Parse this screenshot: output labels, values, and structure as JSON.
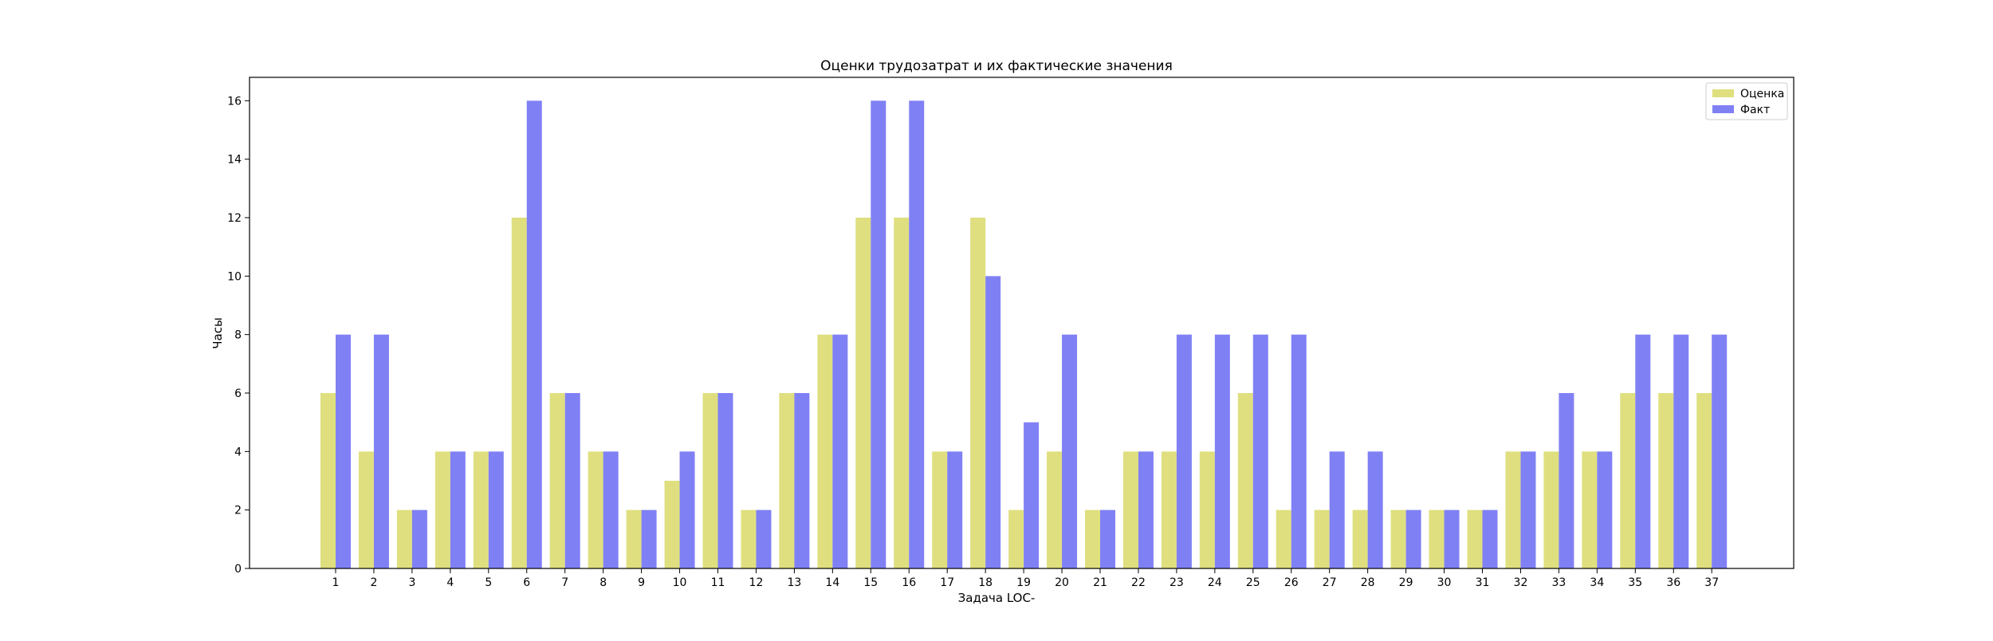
{
  "chart_data": {
    "type": "bar",
    "title": "Оценки трудозатрат и их фактические значения",
    "xlabel": "Задача LOC-",
    "ylabel": "Часы",
    "categories": [
      "1",
      "2",
      "3",
      "4",
      "5",
      "6",
      "7",
      "8",
      "9",
      "10",
      "11",
      "12",
      "13",
      "14",
      "15",
      "16",
      "17",
      "18",
      "19",
      "20",
      "21",
      "22",
      "23",
      "24",
      "25",
      "26",
      "27",
      "28",
      "29",
      "30",
      "31",
      "32",
      "33",
      "34",
      "35",
      "36",
      "37"
    ],
    "series": [
      {
        "name": "Оценка",
        "color": "#dfdf7f",
        "values": [
          6,
          4,
          2,
          4,
          4,
          12,
          6,
          4,
          2,
          3,
          6,
          2,
          6,
          8,
          12,
          12,
          4,
          12,
          2,
          4,
          2,
          4,
          4,
          4,
          6,
          2,
          2,
          2,
          2,
          2,
          2,
          4,
          4,
          4,
          6,
          6,
          6
        ]
      },
      {
        "name": "Факт",
        "color": "#8080f5",
        "values": [
          8,
          8,
          2,
          4,
          4,
          16,
          6,
          4,
          2,
          4,
          6,
          2,
          6,
          8,
          16,
          16,
          4,
          10,
          5,
          8,
          2,
          4,
          8,
          8,
          8,
          8,
          4,
          4,
          2,
          2,
          2,
          4,
          6,
          4,
          8,
          8,
          8
        ]
      }
    ],
    "ylim": [
      0,
      16.8
    ],
    "yticks": [
      0,
      2,
      4,
      6,
      8,
      10,
      12,
      14,
      16
    ],
    "legend_position": "top-right",
    "grid": false
  }
}
